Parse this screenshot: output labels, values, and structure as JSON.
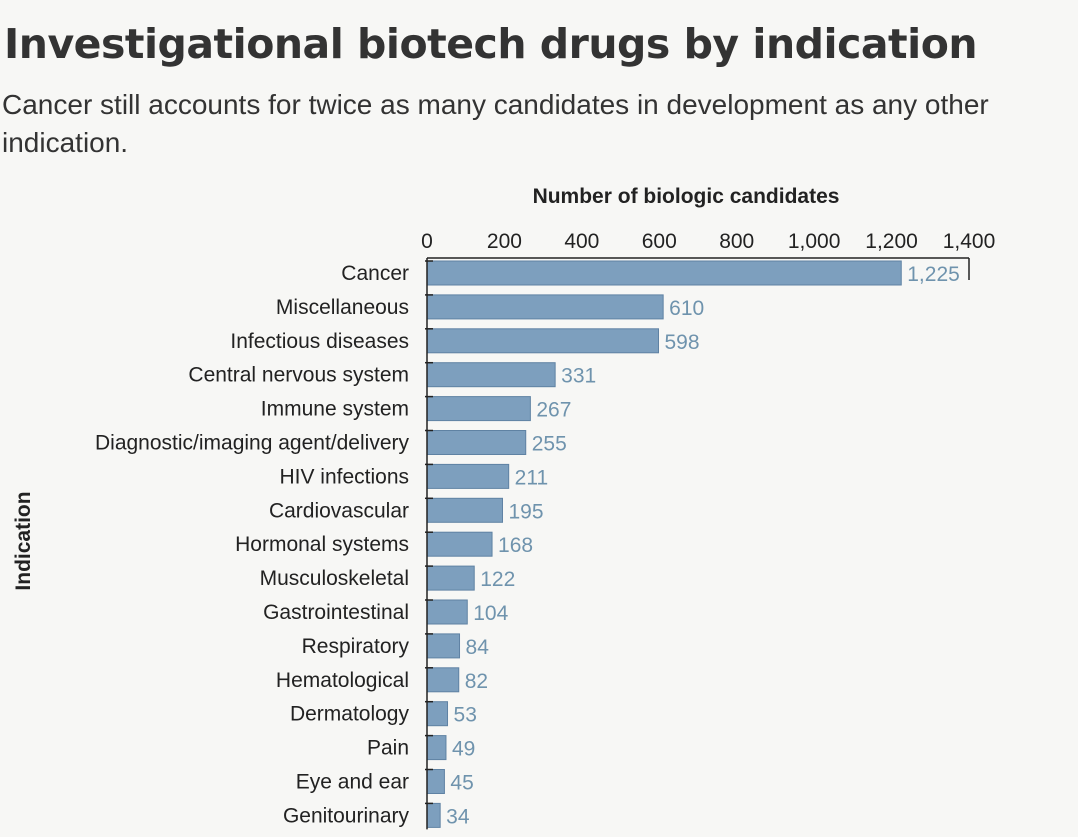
{
  "title": "Investigational biotech drugs by indication",
  "subtitle": "Cancer still accounts for twice as many candidates in development as any other indication.",
  "colors": {
    "bar": "#7d9fbe",
    "bar_stroke": "#5f82a3",
    "value_label": "#6f93ad"
  },
  "chart_data": {
    "type": "bar",
    "orientation": "horizontal",
    "title": "Investigational biotech drugs by indication",
    "subtitle": "Cancer still accounts for twice as many candidates in development as any other indication.",
    "xlabel": "Number of biologic candidates",
    "ylabel": "Indication",
    "xlim": [
      0,
      1400
    ],
    "xticks": [
      0,
      200,
      400,
      600,
      800,
      1000,
      1200,
      1400
    ],
    "xtick_labels": [
      "0",
      "200",
      "400",
      "600",
      "800",
      "1,000",
      "1,200",
      "1,400"
    ],
    "x_axis_position": "top",
    "grid": false,
    "categories": [
      "Cancer",
      "Miscellaneous",
      "Infectious diseases",
      "Central nervous system",
      "Immune system",
      "Diagnostic/imaging agent/delivery",
      "HIV infections",
      "Cardiovascular",
      "Hormonal systems",
      "Musculoskeletal",
      "Gastrointestinal",
      "Respiratory",
      "Hematological",
      "Dermatology",
      "Pain",
      "Eye and ear",
      "Genitourinary"
    ],
    "values": [
      1225,
      610,
      598,
      331,
      267,
      255,
      211,
      195,
      168,
      122,
      104,
      84,
      82,
      53,
      49,
      45,
      34
    ],
    "value_labels": [
      "1,225",
      "610",
      "598",
      "331",
      "267",
      "255",
      "211",
      "195",
      "168",
      "122",
      "104",
      "84",
      "82",
      "53",
      "49",
      "45",
      "34"
    ]
  }
}
